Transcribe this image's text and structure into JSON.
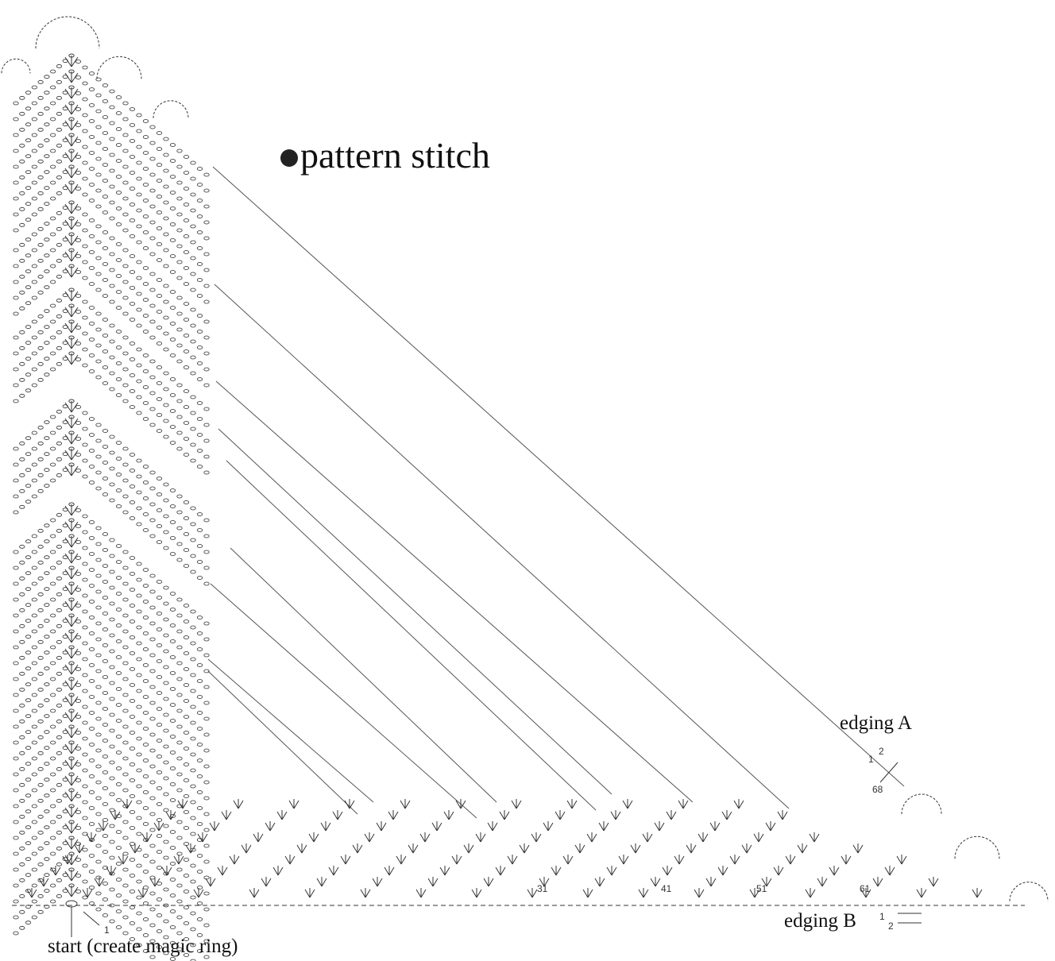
{
  "title": "pattern stitch",
  "labels": {
    "edging_a": "edging A",
    "edging_b": "edging B",
    "start": "start (create magic ring)"
  },
  "row_numbers": [
    "1",
    "2",
    "68",
    "1",
    "2",
    "1",
    "31",
    "41",
    "51",
    "61"
  ]
}
